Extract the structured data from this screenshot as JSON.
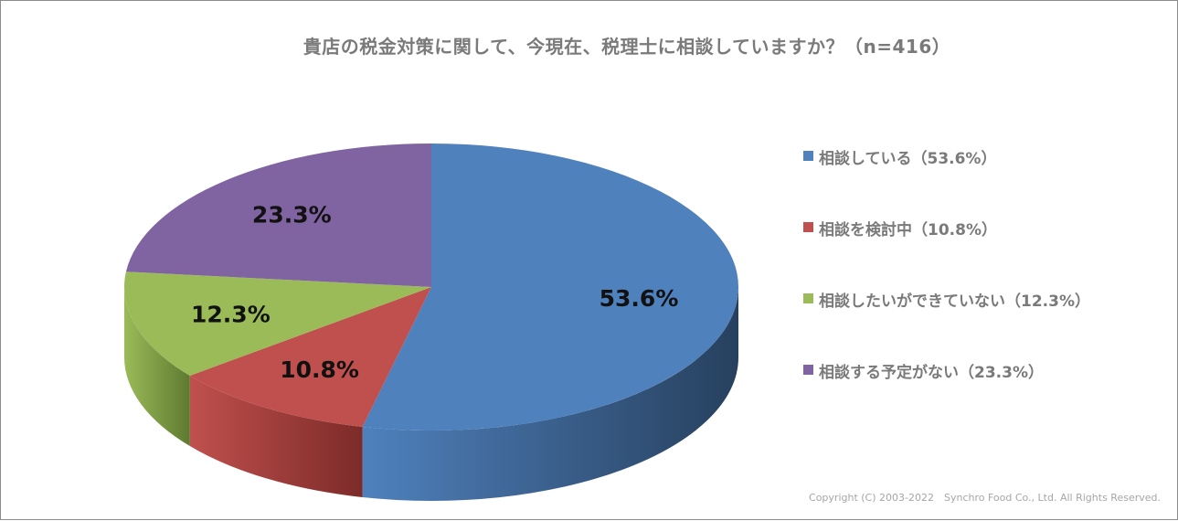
{
  "chart_data": {
    "type": "pie",
    "title": "貴店の税金対策に関して、今現在、税理士に相談していますか？（n=416）",
    "slices": [
      {
        "name": "相談している",
        "legend": "相談している（53.6%）",
        "value": 53.6,
        "label": "53.6%",
        "color": "#4f81bd",
        "side": "#27405e"
      },
      {
        "name": "相談を検討中",
        "legend": "相談を検討中（10.8%）",
        "value": 10.8,
        "label": "10.8%",
        "color": "#c0504d",
        "side": "#7c2b29"
      },
      {
        "name": "相談したいができていない",
        "legend": "相談したいができていない（12.3%）",
        "value": 12.3,
        "label": "12.3%",
        "color": "#9bbb59",
        "side": "#5f7a30"
      },
      {
        "name": "相談する予定がない",
        "legend": "相談する予定がない（23.3%）",
        "value": 23.3,
        "label": "23.3%",
        "color": "#8064a2",
        "side": "#4d3a66"
      }
    ],
    "legend_position": "right"
  },
  "copyright": "Copyright (C) 2003-2022　Synchro Food Co., Ltd. All Rights Reserved."
}
